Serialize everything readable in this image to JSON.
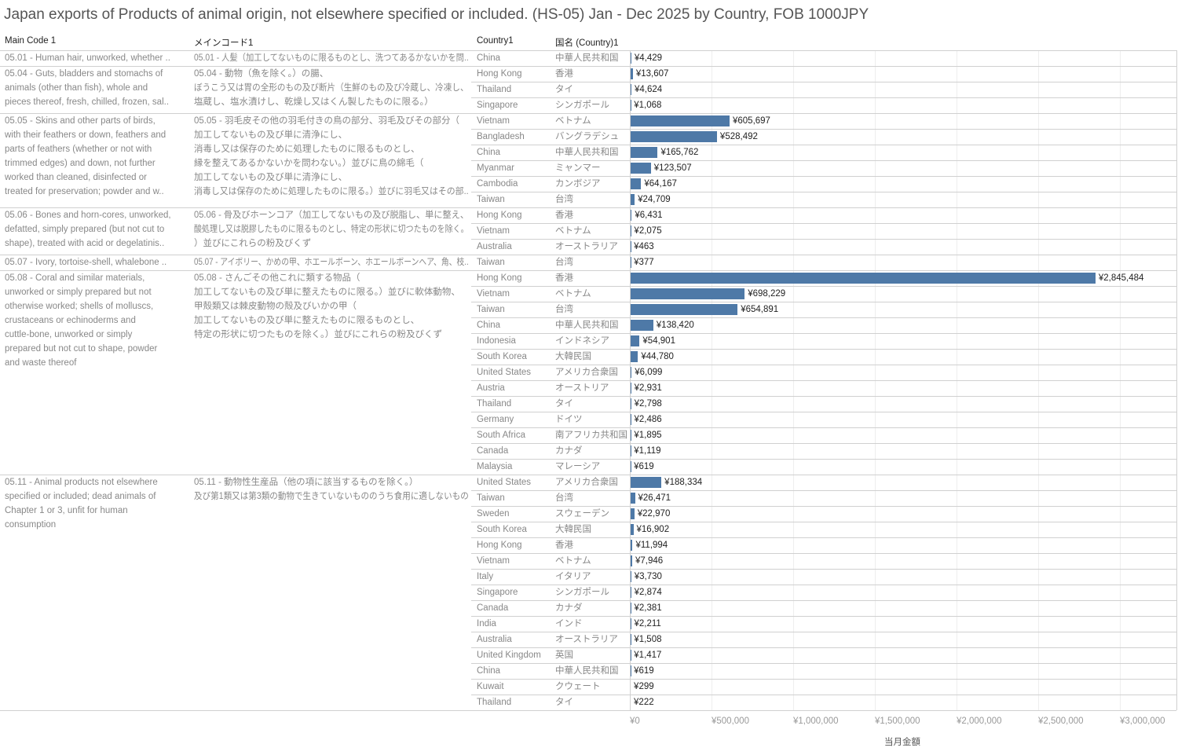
{
  "title": "Japan exports of Products of animal origin, not elsewhere specified or included. (HS-05) Jan - Dec 2025 by Country, FOB 1000JPY",
  "headers": {
    "main_code": "Main Code 1",
    "main_code_jp": "メインコード1",
    "country": "Country1",
    "country_jp": "国名 (Country)1"
  },
  "chart_data": {
    "type": "bar",
    "orientation": "horizontal",
    "xlabel": "当月金額",
    "xlim": [
      0,
      3350000
    ],
    "ticks": [
      0,
      500000,
      1000000,
      1500000,
      2000000,
      2500000,
      3000000
    ],
    "tick_labels": [
      "¥0",
      "¥500,000",
      "¥1,000,000",
      "¥1,500,000",
      "¥2,000,000",
      "¥2,500,000",
      "¥3,000,000"
    ],
    "groups": [
      {
        "code": [
          "05.01 - Human hair, unworked, whether .."
        ],
        "code_jp": [
          "05.01 - 人髪（加工してないものに限るものとし、洗つてあるかないかを問.."
        ],
        "rows": [
          [
            "China",
            "中華人民共和国",
            4429
          ]
        ]
      },
      {
        "code": [
          "05.04 - Guts, bladders and stomachs of",
          "animals (other than fish), whole and",
          "pieces thereof, fresh, chilled, frozen, sal.."
        ],
        "code_jp": [
          "05.04 - 動物（魚を除く。）の腸、",
          "ぼうこう又は胃の全形のもの及び断片（生鮮のもの及び冷蔵し、冷凍し、",
          "塩蔵し、塩水漬けし、乾燥し又はくん製したものに限る。）"
        ],
        "rows": [
          [
            "Hong Kong",
            "香港",
            13607
          ],
          [
            "Thailand",
            "タイ",
            4624
          ],
          [
            "Singapore",
            "シンガポール",
            1068
          ]
        ]
      },
      {
        "code": [
          "05.05 - Skins and other parts of birds,",
          "with their feathers or down, feathers and",
          "parts of feathers (whether or not with",
          "trimmed edges) and down, not further",
          "worked than cleaned, disinfected or",
          "treated for preservation; powder and w.."
        ],
        "code_jp": [
          "05.05 - 羽毛皮その他の羽毛付きの鳥の部分、羽毛及びその部分（",
          "加工してないもの及び単に清浄にし、",
          "消毒し又は保存のために処理したものに限るものとし、",
          "縁を整えてあるかないかを問わない。）並びに鳥の綿毛（",
          "加工してないもの及び単に清浄にし、",
          "消毒し又は保存のために処理したものに限る。）並びに羽毛又はその部.."
        ],
        "rows": [
          [
            "Vietnam",
            "ベトナム",
            605697
          ],
          [
            "Bangladesh",
            "バングラデシュ",
            528492
          ],
          [
            "China",
            "中華人民共和国",
            165762
          ],
          [
            "Myanmar",
            "ミャンマー",
            123507
          ],
          [
            "Cambodia",
            "カンボジア",
            64167
          ],
          [
            "Taiwan",
            "台湾",
            24709
          ]
        ]
      },
      {
        "code": [
          "05.06 - Bones and horn-cores, unworked,",
          "defatted, simply prepared (but not cut to",
          "shape), treated with acid or degelatinis.."
        ],
        "code_jp": [
          "05.06 - 骨及びホーンコア（加工してないもの及び脱脂し、単に整え、",
          "酸処理し又は脱膠したものに限るものとし、特定の形状に切つたものを除く。",
          "）並びにこれらの粉及びくず"
        ],
        "rows": [
          [
            "Hong Kong",
            "香港",
            6431
          ],
          [
            "Vietnam",
            "ベトナム",
            2075
          ],
          [
            "Australia",
            "オーストラリア",
            463
          ]
        ]
      },
      {
        "code": [
          "05.07 - Ivory, tortoise-shell, whalebone .."
        ],
        "code_jp": [
          "05.07 - アイボリー、かめの甲、ホエールボーン、ホエールボーンヘア、角、枝.."
        ],
        "rows": [
          [
            "Taiwan",
            "台湾",
            377
          ]
        ]
      },
      {
        "code": [
          "05.08 - Coral and similar materials,",
          "unworked or simply prepared but not",
          "otherwise worked; shells of molluscs,",
          "crustaceans or echinoderms and",
          "cuttle-bone, unworked or simply",
          "prepared but not cut to shape, powder",
          "and waste thereof"
        ],
        "code_jp": [
          "05.08 - さんごその他これに類する物品（",
          "加工してないもの及び単に整えたものに限る。）並びに軟体動物、",
          "甲殻類又は棘皮動物の殻及びいかの甲（",
          "加工してないもの及び単に整えたものに限るものとし、",
          "特定の形状に切つたものを除く。）並びにこれらの粉及びくず"
        ],
        "rows": [
          [
            "Hong Kong",
            "香港",
            2845484
          ],
          [
            "Vietnam",
            "ベトナム",
            698229
          ],
          [
            "Taiwan",
            "台湾",
            654891
          ],
          [
            "China",
            "中華人民共和国",
            138420
          ],
          [
            "Indonesia",
            "インドネシア",
            54901
          ],
          [
            "South Korea",
            "大韓民国",
            44780
          ],
          [
            "United States",
            "アメリカ合衆国",
            6099
          ],
          [
            "Austria",
            "オーストリア",
            2931
          ],
          [
            "Thailand",
            "タイ",
            2798
          ],
          [
            "Germany",
            "ドイツ",
            2486
          ],
          [
            "South Africa",
            "南アフリカ共和国",
            1895
          ],
          [
            "Canada",
            "カナダ",
            1119
          ],
          [
            "Malaysia",
            "マレーシア",
            619
          ]
        ]
      },
      {
        "code": [
          "05.11 - Animal products not elsewhere",
          "specified or included; dead animals of",
          "Chapter 1 or 3, unfit for human",
          "consumption"
        ],
        "code_jp": [
          "05.11 - 動物性生産品（他の項に該当するものを除く。）",
          "及び第1類又は第3類の動物で生きていないもののうち食用に適しないもの"
        ],
        "rows": [
          [
            "United States",
            "アメリカ合衆国",
            188334
          ],
          [
            "Taiwan",
            "台湾",
            26471
          ],
          [
            "Sweden",
            "スウェーデン",
            22970
          ],
          [
            "South Korea",
            "大韓民国",
            16902
          ],
          [
            "Hong Kong",
            "香港",
            11994
          ],
          [
            "Vietnam",
            "ベトナム",
            7946
          ],
          [
            "Italy",
            "イタリア",
            3730
          ],
          [
            "Singapore",
            "シンガポール",
            2874
          ],
          [
            "Canada",
            "カナダ",
            2381
          ],
          [
            "India",
            "インド",
            2211
          ],
          [
            "Australia",
            "オーストラリア",
            1508
          ],
          [
            "United Kingdom",
            "英国",
            1417
          ],
          [
            "China",
            "中華人民共和国",
            619
          ],
          [
            "Kuwait",
            "クウェート",
            299
          ],
          [
            "Thailand",
            "タイ",
            222
          ]
        ]
      }
    ]
  }
}
